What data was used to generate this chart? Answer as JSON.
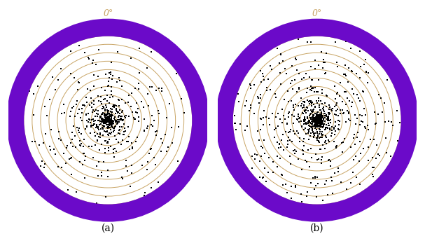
{
  "n_points": 990,
  "n_circles": 10,
  "circle_color": "#C8A464",
  "dot_color": "black",
  "dot_size": 2.0,
  "border_color": "#6B0AC9",
  "border_linewidth": 18,
  "bg_color": "white",
  "zero_label": "0°",
  "zero_label_color": "#C8A464",
  "zero_label_fontsize": 9,
  "label_a": "(a)",
  "label_b": "(b)",
  "label_fontsize": 10,
  "seed_a": 42,
  "seed_b": 7,
  "figsize": [
    6.07,
    3.54
  ],
  "dpi": 100
}
